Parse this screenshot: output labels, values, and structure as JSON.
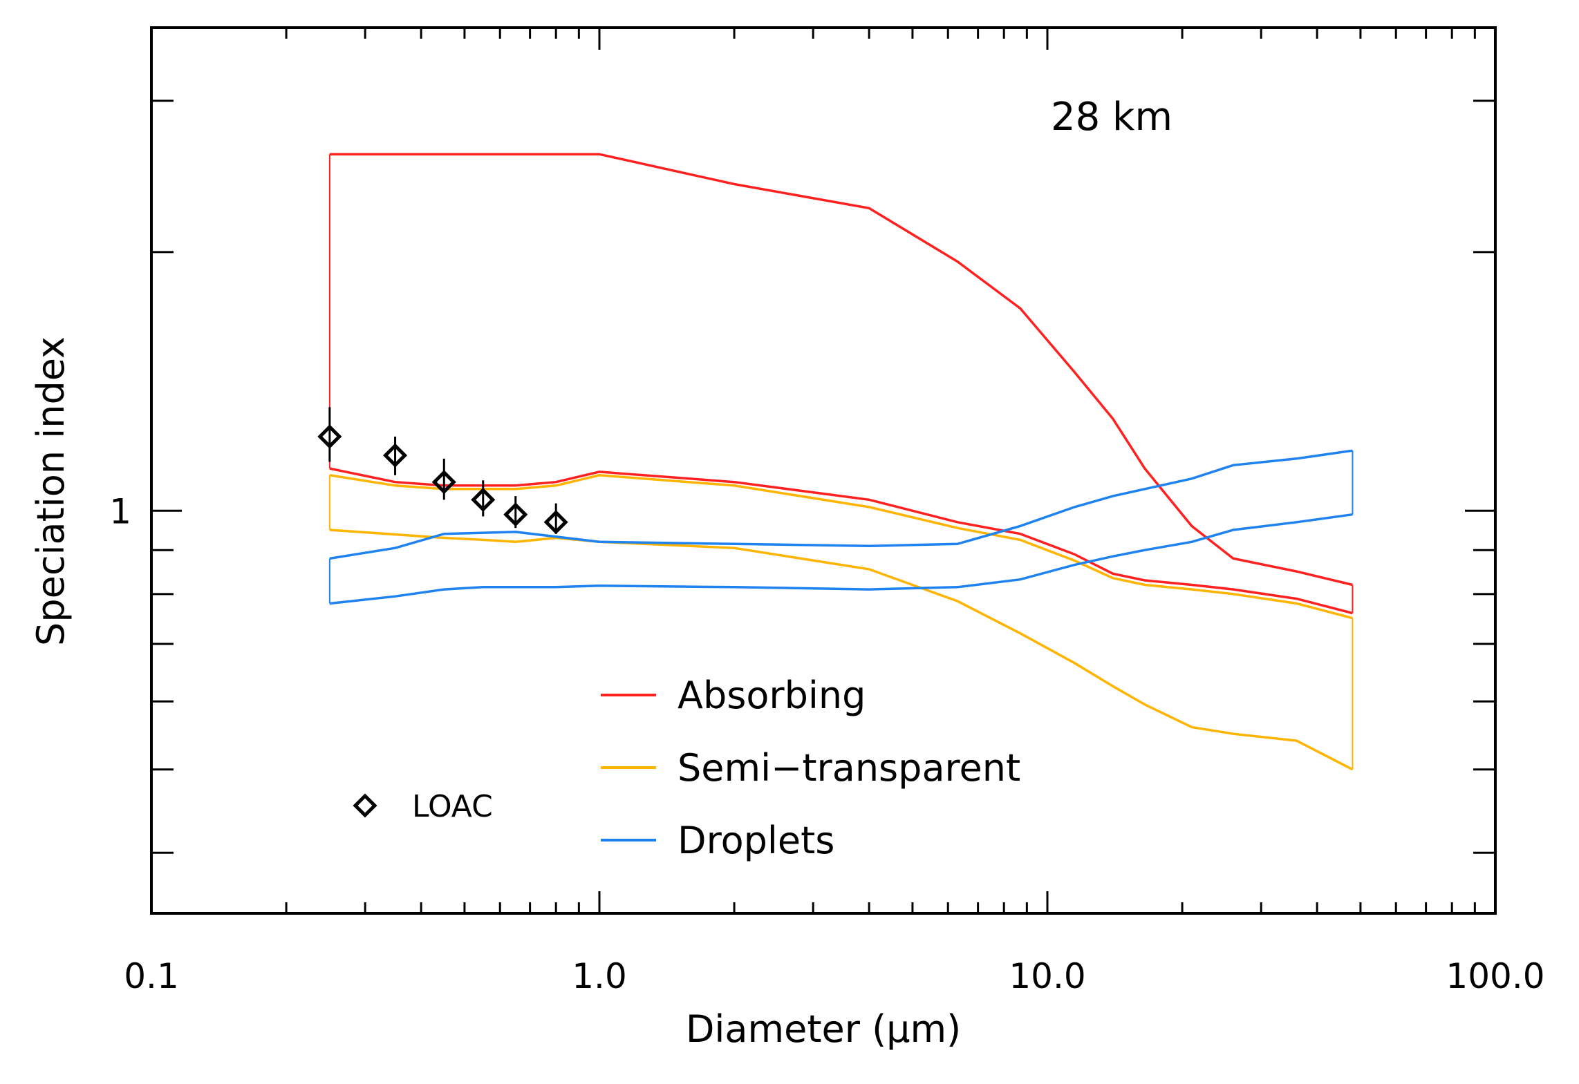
{
  "chart_data": {
    "type": "line",
    "xscale": "log",
    "yscale": "log",
    "xlabel": "Diameter (μm)",
    "ylabel": "Speciation index",
    "annotation": "28 km",
    "xlim": [
      0.1,
      100
    ],
    "ylim": [
      0.34,
      3.65
    ],
    "x_ticks": [
      {
        "value": 0.1,
        "label": "0.1"
      },
      {
        "value": 1,
        "label": "1.0"
      },
      {
        "value": 10,
        "label": "10.0"
      },
      {
        "value": 100,
        "label": "100.0"
      }
    ],
    "y_ticks": [
      {
        "value": 1,
        "label": "1"
      }
    ],
    "series": [
      {
        "name": "Absorbing",
        "color": "#ff2020",
        "upper": {
          "x": [
            0.25,
            1.0,
            2.0,
            4.0,
            6.3,
            8.7,
            11.5,
            14.0,
            16.5,
            21.0,
            26.0,
            36.0,
            48.0
          ],
          "y": [
            2.6,
            2.6,
            2.4,
            2.25,
            1.95,
            1.72,
            1.45,
            1.28,
            1.12,
            0.96,
            0.88,
            0.85,
            0.82
          ]
        },
        "lower": {
          "x": [
            0.25,
            0.35,
            0.45,
            0.65,
            0.8,
            1.0,
            2.0,
            4.0,
            6.3,
            8.7,
            11.5,
            14.0,
            16.5,
            21.0,
            26.0,
            36.0,
            48.0
          ],
          "y": [
            1.12,
            1.08,
            1.07,
            1.07,
            1.08,
            1.11,
            1.08,
            1.03,
            0.97,
            0.94,
            0.89,
            0.845,
            0.83,
            0.82,
            0.81,
            0.79,
            0.76
          ]
        }
      },
      {
        "name": "Semi-transparent",
        "color": "#ffb400",
        "upper": {
          "x": [
            0.25,
            0.35,
            0.45,
            0.65,
            0.8,
            1.0,
            2.0,
            4.0,
            6.3,
            8.7,
            11.5,
            14.0,
            16.5,
            21.0,
            26.0,
            36.0,
            48.0
          ],
          "y": [
            1.1,
            1.07,
            1.06,
            1.06,
            1.07,
            1.1,
            1.07,
            1.01,
            0.955,
            0.925,
            0.875,
            0.835,
            0.82,
            0.81,
            0.8,
            0.78,
            0.75
          ]
        },
        "lower": {
          "x": [
            0.25,
            0.45,
            0.55,
            0.65,
            0.8,
            1.0,
            2.0,
            4.0,
            6.3,
            8.7,
            11.5,
            14.0,
            16.5,
            21.0,
            26.0,
            36.0,
            48.0
          ],
          "y": [
            0.95,
            0.93,
            0.925,
            0.92,
            0.93,
            0.92,
            0.905,
            0.855,
            0.785,
            0.72,
            0.665,
            0.625,
            0.595,
            0.56,
            0.55,
            0.54,
            0.5
          ]
        }
      },
      {
        "name": "Droplets",
        "color": "#1e82f0",
        "upper": {
          "x": [
            0.25,
            0.35,
            0.45,
            0.65,
            1.0,
            2.0,
            4.0,
            6.3,
            8.7,
            11.5,
            14.0,
            16.5,
            21.0,
            26.0,
            36.0,
            48.0
          ],
          "y": [
            0.88,
            0.905,
            0.94,
            0.945,
            0.92,
            0.915,
            0.91,
            0.915,
            0.96,
            1.01,
            1.04,
            1.06,
            1.09,
            1.13,
            1.15,
            1.175
          ]
        },
        "lower": {
          "x": [
            0.25,
            0.35,
            0.45,
            0.55,
            0.8,
            1.0,
            2.0,
            4.0,
            6.3,
            8.7,
            11.5,
            14.0,
            16.5,
            21.0,
            26.0,
            36.0,
            48.0
          ],
          "y": [
            0.78,
            0.795,
            0.81,
            0.815,
            0.815,
            0.818,
            0.815,
            0.81,
            0.815,
            0.832,
            0.865,
            0.885,
            0.9,
            0.92,
            0.95,
            0.97,
            0.99
          ]
        }
      }
    ],
    "loac": {
      "name": "LOAC",
      "x": [
        0.25,
        0.35,
        0.45,
        0.55,
        0.65,
        0.8
      ],
      "y": [
        1.22,
        1.16,
        1.08,
        1.03,
        0.99,
        0.97
      ],
      "err_low": [
        1.14,
        1.1,
        1.03,
        0.985,
        0.955,
        0.94
      ],
      "err_high": [
        1.32,
        1.22,
        1.15,
        1.085,
        1.04,
        1.02
      ]
    },
    "legend": {
      "position": "bottom-center",
      "entries": [
        {
          "label": "Absorbing",
          "color": "#ff2020"
        },
        {
          "label": "Semi−transparent",
          "color": "#ffb400"
        },
        {
          "label": "Droplets",
          "color": "#1e82f0"
        }
      ],
      "loac_label": "LOAC"
    }
  }
}
